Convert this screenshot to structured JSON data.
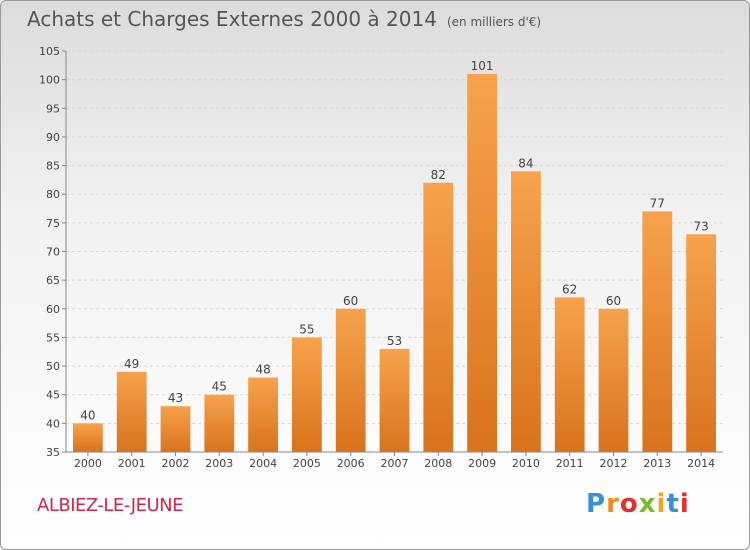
{
  "header": {
    "title": "Achats et Charges Externes 2000 à 2014",
    "subtitle": "(en milliers d'€)"
  },
  "footer": {
    "town": "ALBIEZ-LE-JEUNE",
    "logo_letters": [
      "P",
      "r",
      "o",
      "x",
      "i",
      "t",
      "i"
    ],
    "logo_colors": [
      "#3b8fd6",
      "#f08c1a",
      "#e2302f",
      "#7cb82f",
      "#f0a81a",
      "#3b8fd6",
      "#e2302f"
    ]
  },
  "chart_data": {
    "type": "bar",
    "categories": [
      "2000",
      "2001",
      "2002",
      "2003",
      "2004",
      "2005",
      "2006",
      "2007",
      "2008",
      "2009",
      "2010",
      "2011",
      "2012",
      "2013",
      "2014"
    ],
    "values": [
      40,
      49,
      43,
      45,
      48,
      55,
      60,
      53,
      82,
      101,
      84,
      62,
      60,
      77,
      73
    ],
    "data_labels": [
      "40",
      "49",
      "43",
      "45",
      "48",
      "55",
      "60",
      "53",
      "82",
      "101",
      "84",
      "62",
      "60",
      "77",
      "73"
    ],
    "ylim": [
      35,
      105
    ],
    "yticks": [
      35,
      40,
      45,
      50,
      55,
      60,
      65,
      70,
      75,
      80,
      85,
      90,
      95,
      100,
      105
    ],
    "grid": true,
    "bar_color_top": "#f7a24c",
    "bar_color_bottom": "#d9731e"
  }
}
